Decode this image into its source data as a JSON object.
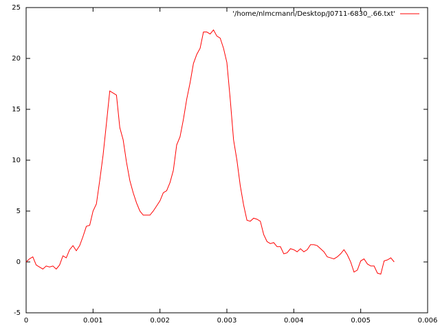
{
  "chart_data": {
    "type": "line",
    "x": [
      0,
      5e-05,
      0.0001,
      0.00015,
      0.0002,
      0.00025,
      0.0003,
      0.00035,
      0.0004,
      0.00045,
      0.0005,
      0.00055,
      0.0006,
      0.00065,
      0.0007,
      0.00075,
      0.0008,
      0.00085,
      0.0009,
      0.00095,
      0.001,
      0.00105,
      0.0011,
      0.00115,
      0.0012,
      0.00125,
      0.0013,
      0.00135,
      0.0014,
      0.00145,
      0.0015,
      0.00155,
      0.0016,
      0.00165,
      0.0017,
      0.00175,
      0.0018,
      0.00185,
      0.0019,
      0.00195,
      0.002,
      0.00205,
      0.0021,
      0.00215,
      0.0022,
      0.00225,
      0.0023,
      0.00235,
      0.0024,
      0.00245,
      0.0025,
      0.00255,
      0.0026,
      0.00265,
      0.0027,
      0.00275,
      0.0028,
      0.00285,
      0.0029,
      0.00295,
      0.003,
      0.00305,
      0.0031,
      0.00315,
      0.0032,
      0.00325,
      0.0033,
      0.00335,
      0.0034,
      0.00345,
      0.0035,
      0.00355,
      0.0036,
      0.00365,
      0.0037,
      0.00375,
      0.0038,
      0.00385,
      0.0039,
      0.00395,
      0.004,
      0.00405,
      0.0041,
      0.00415,
      0.0042,
      0.00425,
      0.0043,
      0.00435,
      0.0044,
      0.00445,
      0.0045,
      0.00455,
      0.0046,
      0.00465,
      0.0047,
      0.00475,
      0.0048,
      0.00485,
      0.0049,
      0.00495,
      0.005,
      0.00505,
      0.0051,
      0.00515,
      0.0052,
      0.00525,
      0.0053,
      0.00535,
      0.0054,
      0.00545,
      0.0055
    ],
    "series": [
      {
        "name": "'/home/nlmcmann/Desktop/J0711-6830_.66.txt'",
        "color": "#ff0000",
        "values": [
          0,
          0.3,
          0.5,
          -0.3,
          -0.5,
          -0.7,
          -0.4,
          -0.5,
          -0.4,
          -0.7,
          -0.3,
          0.6,
          0.4,
          1.2,
          1.6,
          1.1,
          1.6,
          2.5,
          3.5,
          3.6,
          5,
          5.7,
          8,
          10.5,
          13.6,
          16.8,
          16.6,
          16.4,
          13.2,
          12,
          9.8,
          8,
          6.8,
          5.8,
          5,
          4.6,
          4.6,
          4.6,
          5,
          5.5,
          6,
          6.8,
          7,
          7.8,
          9,
          11.5,
          12.3,
          14,
          16,
          17.6,
          19.5,
          20.4,
          21,
          22.6,
          22.6,
          22.4,
          22.8,
          22.2,
          22,
          21,
          19.6,
          16,
          12,
          10,
          7.5,
          5.6,
          4.1,
          4,
          4.3,
          4.2,
          4,
          2.7,
          2,
          1.8,
          1.9,
          1.5,
          1.5,
          0.8,
          0.9,
          1.3,
          1.2,
          1,
          1.3,
          1,
          1.2,
          1.7,
          1.7,
          1.6,
          1.3,
          1,
          0.5,
          0.4,
          0.3,
          0.5,
          0.8,
          1.2,
          0.7,
          0,
          -1,
          -0.8,
          0.1,
          0.3,
          -0.2,
          -0.4,
          -0.4,
          -1.1,
          -1.2,
          0.1,
          0.2,
          0.4,
          0
        ]
      }
    ],
    "xlim": [
      0,
      0.006
    ],
    "xticks": [
      0,
      0.001,
      0.002,
      0.003,
      0.004,
      0.005,
      0.006
    ],
    "ylim": [
      -5,
      25
    ],
    "yticks": [
      -5,
      0,
      5,
      10,
      15,
      20,
      25
    ],
    "grid": false,
    "legend": "top-right"
  }
}
